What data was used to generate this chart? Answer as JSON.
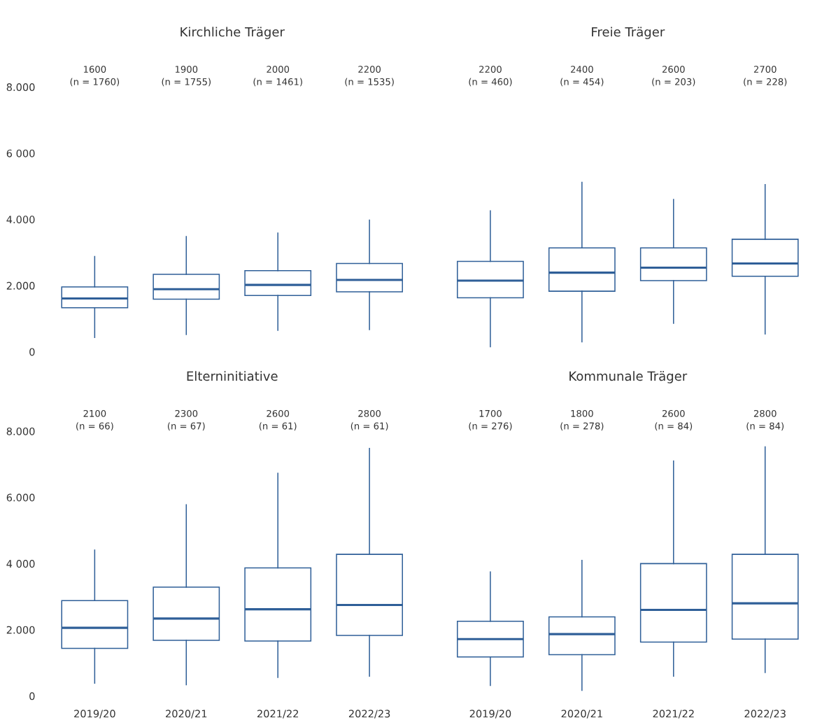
{
  "chart_data": [
    {
      "type": "box",
      "title": "Kirchliche Träger",
      "categories": [
        "2019/20",
        "2020/21",
        "2021/22",
        "2022/23"
      ],
      "ylim": [
        0,
        8000
      ],
      "yticks": [
        {
          "value": 0,
          "label": "0"
        },
        {
          "value": 2000,
          "label": "2.000"
        },
        {
          "value": 4000,
          "label": "4.000"
        },
        {
          "value": 6000,
          "label": "6 000"
        },
        {
          "value": 8000,
          "label": "8.000"
        }
      ],
      "tick_labels": "y",
      "color": "#2f5f98",
      "boxes": [
        {
          "low": 430,
          "q1": 1330,
          "median": 1610,
          "q3": 1960,
          "high": 2880
        },
        {
          "low": 520,
          "q1": 1590,
          "median": 1890,
          "q3": 2340,
          "high": 3480
        },
        {
          "low": 650,
          "q1": 1700,
          "median": 2020,
          "q3": 2450,
          "high": 3590
        },
        {
          "low": 670,
          "q1": 1810,
          "median": 2170,
          "q3": 2670,
          "high": 3980
        }
      ],
      "annotations": [
        "1600\n(n = 1760)",
        "1900\n(n = 1755)",
        "2000\n(n = 1461)",
        "2200\n(n = 1535)"
      ]
    },
    {
      "type": "box",
      "title": "Freie Träger",
      "categories": [
        "2019/20",
        "2020/21",
        "2021/22",
        "2022/23"
      ],
      "ylim": [
        0,
        8000
      ],
      "tick_labels": false,
      "color": "#2f5f98",
      "boxes": [
        {
          "low": 150,
          "q1": 1630,
          "median": 2150,
          "q3": 2730,
          "high": 4260
        },
        {
          "low": 300,
          "q1": 1830,
          "median": 2390,
          "q3": 3140,
          "high": 5120
        },
        {
          "low": 860,
          "q1": 2150,
          "median": 2540,
          "q3": 3140,
          "high": 4600
        },
        {
          "low": 540,
          "q1": 2280,
          "median": 2670,
          "q3": 3400,
          "high": 5050
        }
      ],
      "annotations": [
        "2200\n(n = 460)",
        "2400\n(n = 454)",
        "2600\n(n = 203)",
        "2700\n(n = 228)"
      ]
    },
    {
      "type": "box",
      "title": "Elterninitiative",
      "categories": [
        "2019/20",
        "2020/21",
        "2021/22",
        "2022/23"
      ],
      "ylim": [
        0,
        8000
      ],
      "yticks": [
        {
          "value": 0,
          "label": "0"
        },
        {
          "value": 2000,
          "label": "2.000"
        },
        {
          "value": 4000,
          "label": "4 000"
        },
        {
          "value": 6000,
          "label": "6.000"
        },
        {
          "value": 8000,
          "label": "8.000"
        }
      ],
      "color": "#2f5f98",
      "boxes": [
        {
          "low": 390,
          "q1": 1440,
          "median": 2060,
          "q3": 2880,
          "high": 4410
        },
        {
          "low": 340,
          "q1": 1680,
          "median": 2340,
          "q3": 3290,
          "high": 5780
        },
        {
          "low": 560,
          "q1": 1660,
          "median": 2620,
          "q3": 3870,
          "high": 6730
        },
        {
          "low": 600,
          "q1": 1830,
          "median": 2750,
          "q3": 4280,
          "high": 7480
        }
      ],
      "annotations": [
        "2100\n(n = 66)",
        "2300\n(n = 67)",
        "2600\n(n = 61)",
        "2800\n(n = 61)"
      ]
    },
    {
      "type": "box",
      "title": "Kommunale Träger",
      "categories": [
        "2019/20",
        "2020/21",
        "2021/22",
        "2022/23"
      ],
      "ylim": [
        0,
        8000
      ],
      "tick_labels": "x",
      "color": "#2f5f98",
      "boxes": [
        {
          "low": 320,
          "q1": 1180,
          "median": 1720,
          "q3": 2260,
          "high": 3750
        },
        {
          "low": 170,
          "q1": 1250,
          "median": 1870,
          "q3": 2390,
          "high": 4100
        },
        {
          "low": 600,
          "q1": 1630,
          "median": 2600,
          "q3": 4000,
          "high": 7100
        },
        {
          "low": 710,
          "q1": 1720,
          "median": 2800,
          "q3": 4280,
          "high": 7530
        }
      ],
      "annotations": [
        "1700\n(n = 276)",
        "1800\n(n = 278)",
        "2600\n(n = 84)",
        "2800\n(n = 84)"
      ]
    }
  ]
}
